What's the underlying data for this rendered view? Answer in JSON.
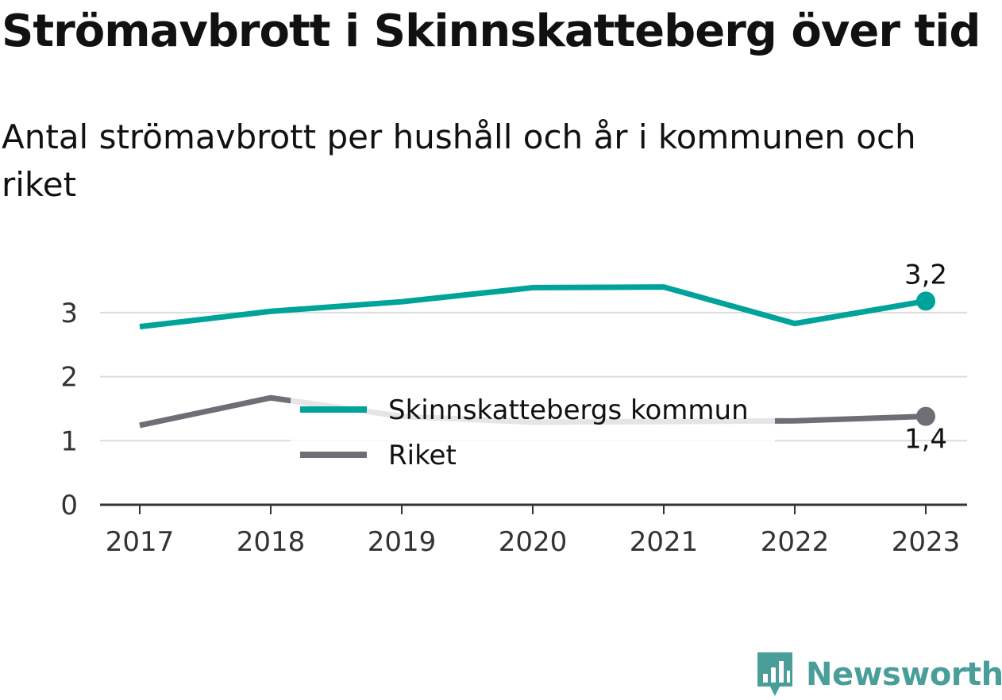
{
  "title": "Strömavbrott i Skinnskatteberg över tid",
  "subtitle": "Antal strömavbrott per hushåll och år i kommunen och riket",
  "brand": {
    "name": "Newsworthy",
    "icon": "bar-chart-speech-bubble-icon",
    "color": "#4a9e99"
  },
  "chart_data": {
    "type": "line",
    "x": [
      "2017",
      "2018",
      "2019",
      "2020",
      "2021",
      "2022",
      "2023"
    ],
    "ylim": [
      0,
      3.5
    ],
    "yticks": [
      "0",
      "1",
      "2",
      "3"
    ],
    "grid": true,
    "legend_placement": "center",
    "series": [
      {
        "name": "Skinnskattebergs kommun",
        "color": "#00a39a",
        "values": [
          2.78,
          3.02,
          3.17,
          3.39,
          3.4,
          2.83,
          3.18
        ],
        "end_label": "3,2"
      },
      {
        "name": "Riket",
        "color": "#6f6e77",
        "values": [
          1.24,
          1.67,
          1.38,
          1.29,
          1.3,
          1.31,
          1.38
        ],
        "end_label": "1,4"
      }
    ]
  }
}
